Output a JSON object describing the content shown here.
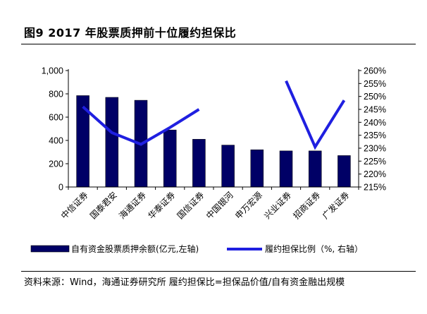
{
  "header": {
    "title": "图9  2017 年股票质押前十位履约担保比"
  },
  "chart_data": {
    "type": "bar",
    "categories": [
      "中信证券",
      "国泰君安",
      "海通证券",
      "华泰证券",
      "国信证券",
      "中国银河",
      "申万宏源",
      "兴业证券",
      "招商证券",
      "广发证券"
    ],
    "series": [
      {
        "name": "自有资金股票质押余额(亿元,左轴)",
        "type": "bar",
        "axis": "left",
        "color": "#000066",
        "values": [
          785,
          770,
          745,
          490,
          410,
          360,
          320,
          310,
          310,
          270
        ]
      },
      {
        "name": "履约担保比例（%, 右轴）",
        "type": "line",
        "axis": "right",
        "color": "#1f1fe0",
        "segments": [
          {
            "from": 0,
            "values": [
              246,
              236,
              231.5,
              238,
              245
            ]
          },
          {
            "from": 7,
            "values": [
              256,
              230.5,
              248.5
            ]
          }
        ]
      }
    ],
    "left_axis": {
      "min": 0,
      "max": 1000,
      "ticks": [
        "0",
        "200",
        "400",
        "600",
        "800",
        "1,000"
      ]
    },
    "right_axis": {
      "min": 215,
      "max": 260,
      "ticks": [
        "215%",
        "220%",
        "225%",
        "230%",
        "235%",
        "240%",
        "245%",
        "250%",
        "255%",
        "260%"
      ]
    },
    "grid": false,
    "legend": "bottom"
  },
  "footer": {
    "source": "资料来源：Wind，海通证券研究所 履约担保比=担保品价值/自有资金融出规模"
  }
}
